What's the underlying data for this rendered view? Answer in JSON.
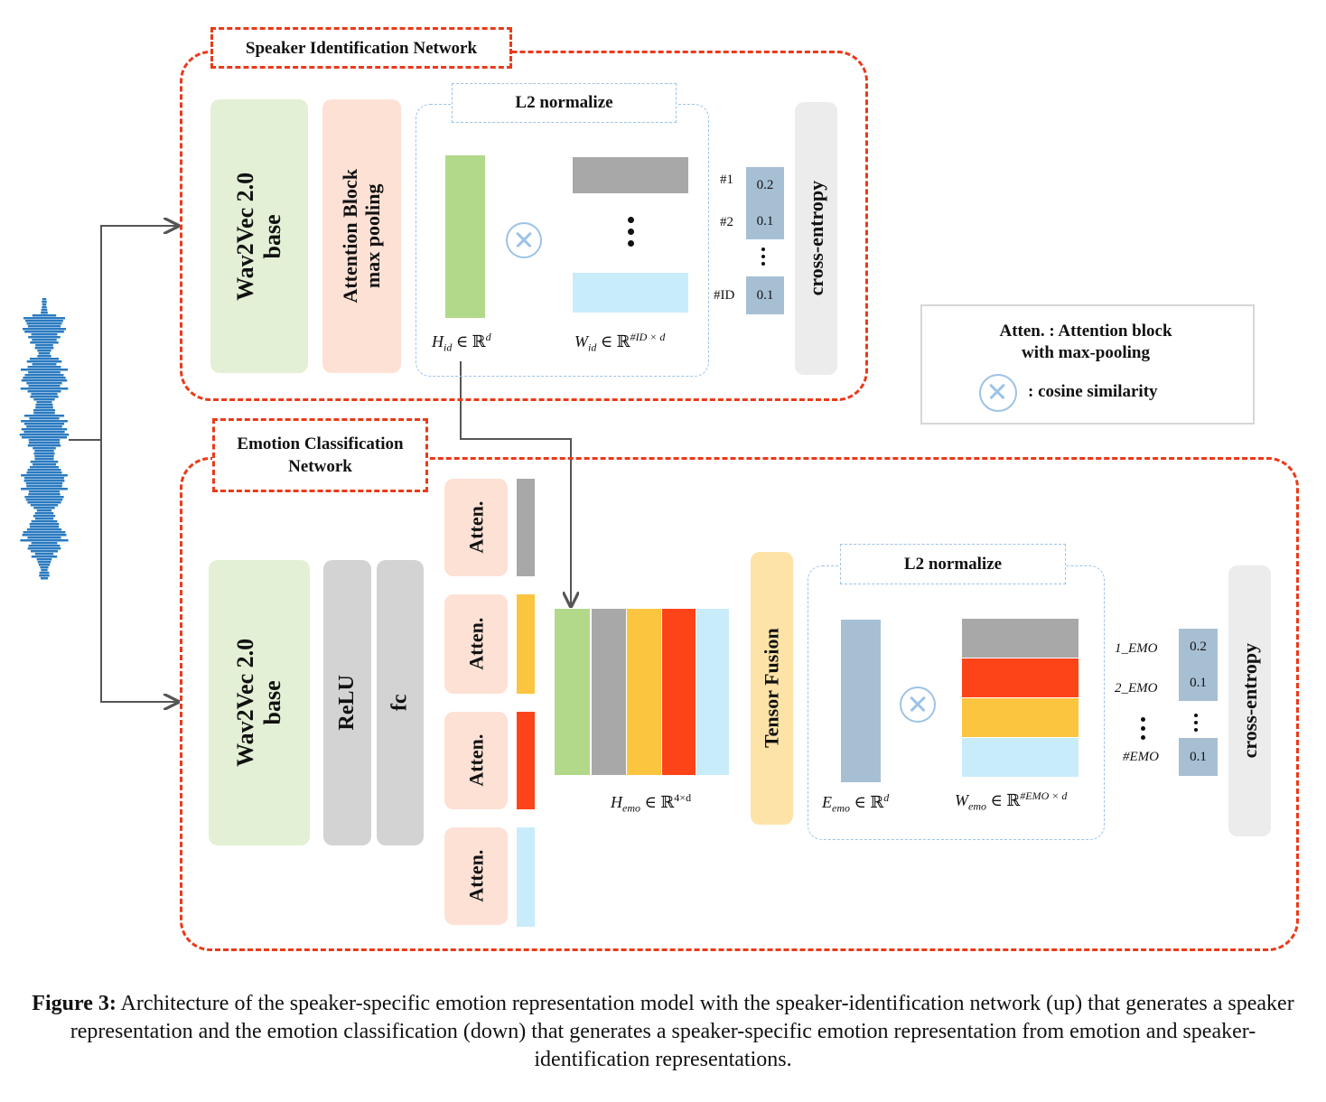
{
  "speaker_network": {
    "title": "Speaker Identification Network",
    "wav2vec": "Wav2Vec 2.0\nbase",
    "attention": "Attention Block\nmax pooling",
    "l2": "L2 normalize",
    "h_id": {
      "sym": "H",
      "sub": "id",
      "rel": " ∈ ℝ",
      "sup": "d"
    },
    "w_id": {
      "sym": "W",
      "sub": "id",
      "rel": " ∈ ℝ",
      "sup": "#ID × d"
    },
    "score_labels": [
      "#1",
      "#2",
      "#ID"
    ],
    "scores": [
      "0.2",
      "0.1",
      "0.1"
    ],
    "loss": "cross-entropy"
  },
  "legend": {
    "line1": "Atten. : Attention block",
    "line2": "with max-pooling",
    "cosine": ": cosine similarity"
  },
  "emotion_network": {
    "title": "Emotion Classification\nNetwork",
    "wav2vec": "Wav2Vec 2.0\nbase",
    "relu": "ReLU",
    "fc": "fc",
    "atten_blocks": [
      "Atten.",
      "Atten.",
      "Atten.",
      "Atten."
    ],
    "h_emo": {
      "sym": "H",
      "sub": "emo",
      "rel": " ∈ ℝ",
      "sup": "4×d"
    },
    "tensor_fusion": "Tensor Fusion",
    "l2": "L2 normalize",
    "e_emo": {
      "sym": "E",
      "sub": "emo",
      "rel": " ∈ ℝ",
      "sup": "d"
    },
    "w_emo": {
      "sym": "W",
      "sub": "emo",
      "rel": " ∈ ℝ",
      "sup": "#EMO × d"
    },
    "score_labels": [
      "1_EMO",
      "2_EMO",
      "#EMO"
    ],
    "scores": [
      "0.2",
      "0.1",
      "0.1"
    ],
    "loss": "cross-entropy"
  },
  "colors": {
    "green": "#b2d98a",
    "gray": "#a8a8a8",
    "yellow": "#fcc540",
    "red": "#fd4419",
    "lightblue": "#c9ecfb",
    "steel": "#a7bfd3",
    "waveform": "#2a7ac0",
    "dash_red": "#ea3a1a"
  },
  "caption": {
    "label": "Figure 3:",
    "text": " Architecture of the speaker-specific emotion representation model with the speaker-identification network (up) that generates a speaker representation and the emotion classification (down) that generates a speaker-specific emotion representation from emotion and speaker-identification representations."
  }
}
